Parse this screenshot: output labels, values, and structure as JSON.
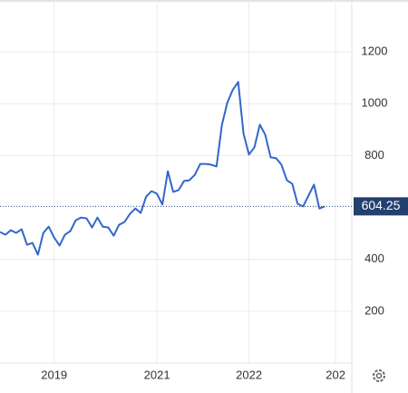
{
  "chart_data": {
    "type": "line",
    "categories": [
      null,
      null,
      null,
      null,
      null,
      null,
      null,
      null,
      null,
      null,
      "2019",
      null,
      null,
      null,
      null,
      null,
      null,
      null,
      null,
      null,
      null,
      null,
      null,
      null,
      null,
      null,
      null,
      null,
      null,
      "2021",
      null,
      null,
      null,
      null,
      null,
      null,
      null,
      null,
      null,
      null,
      null,
      null,
      null,
      null,
      null,
      null,
      "2022",
      null,
      null,
      null,
      null,
      null,
      null,
      null,
      null,
      null,
      null,
      null,
      null,
      null,
      null,
      null,
      "202"
    ],
    "series": [
      {
        "color": "#3366cc",
        "values": [
          505,
          495,
          512,
          502,
          516,
          456,
          463,
          418,
          502,
          526,
          484,
          453,
          495,
          509,
          551,
          561,
          558,
          523,
          561,
          526,
          523,
          491,
          533,
          544,
          575,
          596,
          579,
          642,
          663,
          653,
          611,
          740,
          660,
          667,
          702,
          705,
          726,
          768,
          768,
          765,
          758,
          919,
          1004,
          1053,
          1084,
          884,
          804,
          832,
          919,
          881,
          793,
          790,
          765,
          705,
          691,
          614,
          604,
          646,
          688,
          596,
          604.25,
          null,
          null
        ]
      }
    ],
    "ylim": [
      0,
      1400
    ],
    "yticks": [
      200,
      400,
      800,
      1000,
      1200
    ],
    "grid": true
  }
}
